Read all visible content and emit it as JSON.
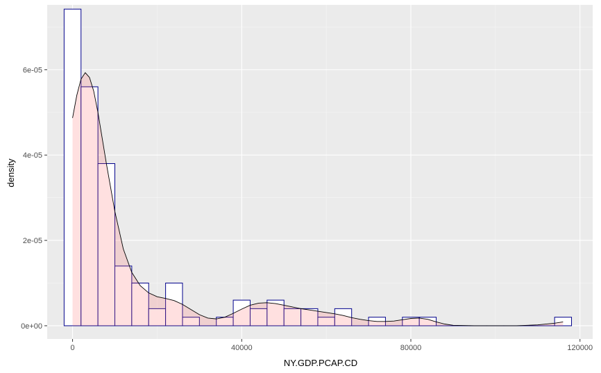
{
  "chart_data": {
    "type": "histogram",
    "xlabel": "NY.GDP.PCAP.CD",
    "ylabel": "density",
    "xlim": [
      -6000,
      123000
    ],
    "ylim": [
      -3.1e-06,
      7.52e-05
    ],
    "x_ticks": [
      0,
      40000,
      80000,
      120000
    ],
    "x_tick_labels": [
      "0",
      "40000",
      "80000",
      "120000"
    ],
    "y_ticks": [
      0,
      2e-05,
      4e-05,
      6e-05
    ],
    "y_tick_labels": [
      "0e+00",
      "2e-05",
      "4e-05",
      "6e-05"
    ],
    "grid": true,
    "bin_width": 4000,
    "bins": [
      {
        "start": -2000,
        "density": 7.42e-05
      },
      {
        "start": 2000,
        "density": 5.6e-05
      },
      {
        "start": 6000,
        "density": 3.8e-05
      },
      {
        "start": 10000,
        "density": 1.4e-05
      },
      {
        "start": 14000,
        "density": 1e-05
      },
      {
        "start": 18000,
        "density": 4e-06
      },
      {
        "start": 22000,
        "density": 1e-05
      },
      {
        "start": 26000,
        "density": 2e-06
      },
      {
        "start": 30000,
        "density": 0.0
      },
      {
        "start": 34000,
        "density": 2e-06
      },
      {
        "start": 38000,
        "density": 6e-06
      },
      {
        "start": 42000,
        "density": 4e-06
      },
      {
        "start": 46000,
        "density": 6e-06
      },
      {
        "start": 50000,
        "density": 4e-06
      },
      {
        "start": 54000,
        "density": 4e-06
      },
      {
        "start": 58000,
        "density": 2e-06
      },
      {
        "start": 62000,
        "density": 4e-06
      },
      {
        "start": 66000,
        "density": 0.0
      },
      {
        "start": 70000,
        "density": 2e-06
      },
      {
        "start": 74000,
        "density": 0.0
      },
      {
        "start": 78000,
        "density": 2e-06
      },
      {
        "start": 82000,
        "density": 2e-06
      },
      {
        "start": 86000,
        "density": 0.0
      },
      {
        "start": 90000,
        "density": 0.0
      },
      {
        "start": 94000,
        "density": 0.0
      },
      {
        "start": 98000,
        "density": 0.0
      },
      {
        "start": 102000,
        "density": 0.0
      },
      {
        "start": 106000,
        "density": 0.0
      },
      {
        "start": 110000,
        "density": 0.0
      },
      {
        "start": 114000,
        "density": 2e-06
      }
    ],
    "density_curve": {
      "x": [
        0,
        1000,
        2000,
        3000,
        4000,
        5000,
        6000,
        8000,
        10000,
        12000,
        14000,
        16000,
        18000,
        20000,
        22000,
        24000,
        26000,
        28000,
        30000,
        32000,
        34000,
        36000,
        38000,
        40000,
        42000,
        44000,
        46000,
        48000,
        50000,
        52000,
        54000,
        56000,
        58000,
        60000,
        62000,
        64000,
        66000,
        68000,
        70000,
        72000,
        74000,
        76000,
        78000,
        80000,
        82000,
        84000,
        86000,
        88000,
        90000,
        95000,
        100000,
        105000,
        110000,
        114000,
        116000
      ],
      "y": [
        4.87e-05,
        5.4e-05,
        5.78e-05,
        5.93e-05,
        5.82e-05,
        5.5e-05,
        5e-05,
        3.8e-05,
        2.68e-05,
        1.8e-05,
        1.25e-05,
        9.4e-06,
        7.7e-06,
        6.8e-06,
        6.4e-06,
        5.9e-06,
        5e-06,
        3.8e-06,
        2.6e-06,
        1.8e-06,
        1.6e-06,
        2e-06,
        2.9e-06,
        3.9e-06,
        4.8e-06,
        5.3e-06,
        5.4e-06,
        5.2e-06,
        4.8e-06,
        4.4e-06,
        4e-06,
        3.7e-06,
        3.4e-06,
        3.1e-06,
        2.8e-06,
        2.4e-06,
        1.9e-06,
        1.5e-06,
        1.2e-06,
        1e-06,
        1e-06,
        1.1e-06,
        1.4e-06,
        1.7e-06,
        1.8e-06,
        1.5e-06,
        9e-07,
        4e-07,
        1e-07,
        0.0,
        0.0,
        0.0,
        2e-07,
        6e-07,
        9e-07
      ]
    },
    "colors": {
      "panel": "#ebebeb",
      "grid_major": "#ffffff",
      "grid_minor": "#f5f5f5",
      "bar_fill": "#ffffff",
      "bar_outline": "#00008b",
      "density_fill": "#ff6666",
      "density_line": "#000000"
    },
    "density_fill_opacity": 0.2
  }
}
